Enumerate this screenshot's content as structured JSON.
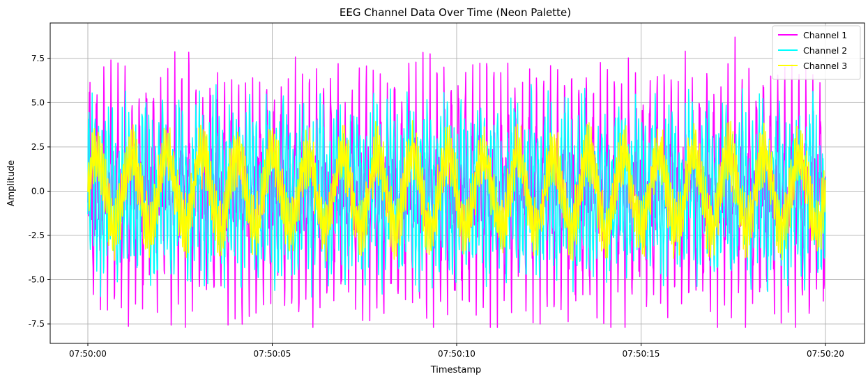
{
  "chart_data": {
    "type": "line",
    "title": "EEG Channel Data Over Time (Neon Palette)",
    "xlabel": "Timestamp",
    "ylabel": "Amplitude",
    "x_start": "07:50:00",
    "x_end": "07:50:20",
    "x_ticks": [
      "07:50:00",
      "07:50:05",
      "07:50:10",
      "07:50:15",
      "07:50:20"
    ],
    "y_ticks": [
      "-7.5",
      "-5.0",
      "-2.5",
      "0.0",
      "2.5",
      "5.0",
      "7.5"
    ],
    "ylim": [
      -8.6,
      9.5
    ],
    "grid": true,
    "legend_position": "top-right",
    "series": [
      {
        "name": "Channel 1",
        "color": "#ff00ff",
        "description": "periodic spiky oscillation",
        "approx_max": 8.7,
        "approx_min": -7.7,
        "typical_peak": 5.8,
        "typical_trough": -6.0
      },
      {
        "name": "Channel 2",
        "color": "#00ffff",
        "approx_max": 6.1,
        "approx_min": -6.4,
        "typical_peak": 4.6,
        "typical_trough": -4.7
      },
      {
        "name": "Channel 3",
        "color": "#ffff00",
        "approx_max": 4.9,
        "approx_min": -4.0,
        "typical_peak": 3.5,
        "typical_trough": -3.3
      }
    ]
  }
}
